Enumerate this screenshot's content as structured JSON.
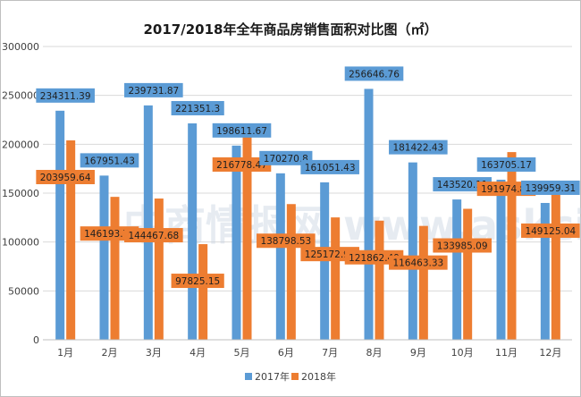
{
  "chart_data": {
    "type": "bar",
    "title": "2017/2018年全年商品房销售面积对比图（㎡）",
    "categories": [
      "1月",
      "2月",
      "3月",
      "4月",
      "5月",
      "6月",
      "7月",
      "8月",
      "9月",
      "10月",
      "11月",
      "12月"
    ],
    "series": [
      {
        "name": "2017年",
        "color": "#5b9bd5",
        "values": [
          234311.39,
          167951.43,
          239731.87,
          221351.3,
          198611.67,
          170270.8,
          161051.43,
          256646.76,
          181422.43,
          143520.11,
          163705.17,
          139959.31
        ]
      },
      {
        "name": "2018年",
        "color": "#ed7d31",
        "values": [
          203959.64,
          146193.75,
          144467.68,
          97825.15,
          216778.47,
          138798.53,
          125172.98,
          121862.49,
          116463.33,
          133985.09,
          191974.86,
          149125.04
        ]
      }
    ],
    "data_labels": {
      "s2017": [
        "234311.39",
        "167951.43",
        "239731.87",
        "221351.3",
        "198611.67",
        "170270.8",
        "161051.43",
        "256646.76",
        "181422.43",
        "143520.11",
        "163705.17",
        "139959.31"
      ],
      "s2018": [
        "203959.64",
        "146193.75",
        "144467.68",
        "97825.15",
        "216778.47",
        "138798.53",
        "125172.98",
        "121862.49",
        "116463.33",
        "133985.09",
        "191974.86",
        "149125.04"
      ]
    },
    "yticks": [
      "0",
      "50000",
      "100000",
      "150000",
      "200000",
      "250000",
      "300000"
    ],
    "ylim": [
      0,
      300000
    ],
    "grid": true,
    "legend": "bottom",
    "watermark": "中商情报网 www.askci.com"
  }
}
